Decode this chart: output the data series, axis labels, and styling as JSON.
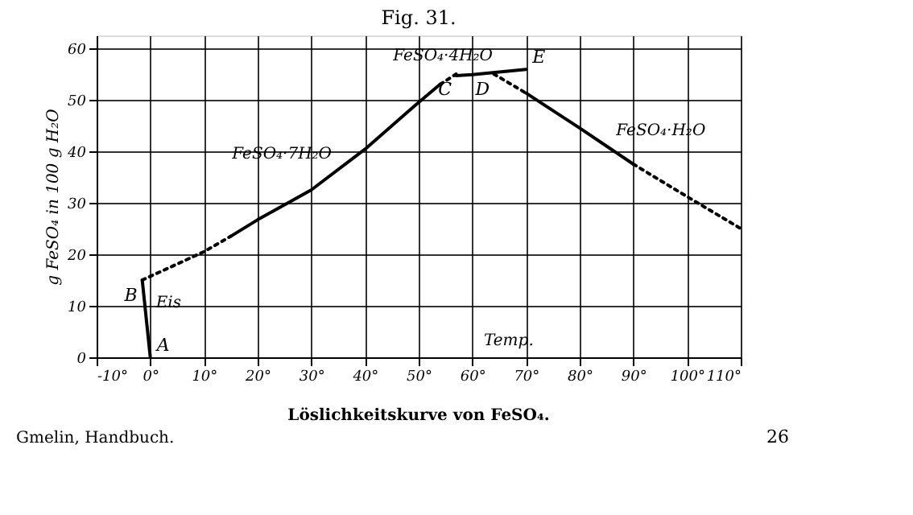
{
  "chart_data": {
    "type": "line",
    "title": "Fig. 31.",
    "xlabel": "Temp.",
    "ylabel": "g FeSO₄ in 100 g H₂O",
    "xlim": [
      -10,
      110
    ],
    "ylim": [
      0,
      62.5
    ],
    "xticks": [
      {
        "value": -10,
        "label": "-10°"
      },
      {
        "value": 0,
        "label": "0°"
      },
      {
        "value": 10,
        "label": "10°"
      },
      {
        "value": 20,
        "label": "20°"
      },
      {
        "value": 30,
        "label": "30°"
      },
      {
        "value": 40,
        "label": "40°"
      },
      {
        "value": 50,
        "label": "50°"
      },
      {
        "value": 60,
        "label": "60°"
      },
      {
        "value": 70,
        "label": "70°"
      },
      {
        "value": 80,
        "label": "80°"
      },
      {
        "value": 90,
        "label": "90°"
      },
      {
        "value": 100,
        "label": "100°"
      },
      {
        "value": 110,
        "label": "110°"
      }
    ],
    "yticks": [
      0,
      10,
      20,
      30,
      40,
      50,
      60
    ],
    "grid": true,
    "marker": "none",
    "series": [
      {
        "name": "Eis",
        "color": "#000000",
        "x": [
          -1.5,
          0
        ],
        "values": [
          15,
          0
        ],
        "line_style": "solid"
      },
      {
        "color": "#000000",
        "x": [
          -1.5,
          10,
          15
        ],
        "values": [
          15,
          20.5,
          23.5
        ],
        "line_style": "dotted"
      },
      {
        "name": "FeSO₄·7H₂O",
        "color": "#000000",
        "x": [
          15,
          20,
          30,
          40,
          50,
          54
        ],
        "values": [
          23.5,
          26.7,
          32.5,
          40.4,
          49.5,
          53
        ],
        "line_style": "solid"
      },
      {
        "color": "#000000",
        "x": [
          54,
          57
        ],
        "values": [
          53,
          55
        ],
        "line_style": "dotted"
      },
      {
        "name": "FeSO₄·4H₂O",
        "color": "#000000",
        "x": [
          57,
          60,
          70
        ],
        "values": [
          54.7,
          54.9,
          55.9
        ],
        "line_style": "solid"
      },
      {
        "color": "#000000",
        "x": [
          64,
          70
        ],
        "values": [
          55,
          51.3
        ],
        "line_style": "dotted"
      },
      {
        "name": "FeSO₄·H₂O",
        "color": "#000000",
        "x": [
          70,
          80,
          90
        ],
        "values": [
          51.3,
          44.5,
          37.5
        ],
        "line_style": "solid"
      },
      {
        "color": "#000000",
        "x": [
          90,
          100,
          110
        ],
        "values": [
          37.5,
          31.2,
          25
        ],
        "line_style": "dotted"
      }
    ],
    "annotations": [
      {
        "text": "A",
        "x": 0,
        "y": 0
      },
      {
        "text": "B",
        "x": -1.5,
        "y": 15
      },
      {
        "text": "C",
        "x": 57,
        "y": 55
      },
      {
        "text": "D",
        "x": 64,
        "y": 55
      },
      {
        "text": "E",
        "x": 70,
        "y": 55.9
      },
      "Löslichkeitskurve von FeSO₄.",
      "Gmelin, Handbuch.",
      "26"
    ]
  }
}
